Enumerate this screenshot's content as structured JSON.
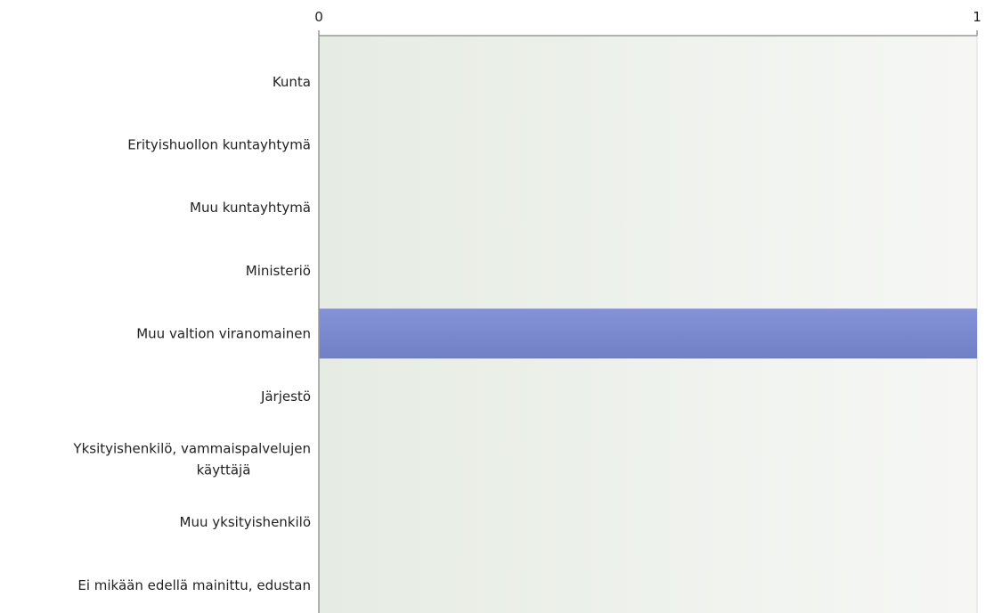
{
  "chart_data": {
    "type": "bar",
    "orientation": "horizontal",
    "categories": [
      "Kunta",
      "Erityishuollon kuntayhtymä",
      "Muu kuntayhtymä",
      "Ministeriö",
      "Muu valtion viranomainen",
      "Järjestö",
      "Yksityishenkilö, vammaispalvelujen käyttäjä",
      "Muu yksityishenkilö",
      "Ei mikään edellä mainittu, edustan"
    ],
    "category_lines": [
      [
        "Kunta"
      ],
      [
        "Erityishuollon kuntayhtymä"
      ],
      [
        "Muu kuntayhtymä"
      ],
      [
        "Ministeriö"
      ],
      [
        "Muu valtion viranomainen"
      ],
      [
        "Järjestö"
      ],
      [
        "Yksityishenkilö, vammaispalvelujen",
        "käyttäjä"
      ],
      [
        "Muu yksityishenkilö"
      ],
      [
        "Ei mikään edellä mainittu, edustan"
      ]
    ],
    "values": [
      0,
      0,
      0,
      0,
      1,
      0,
      0,
      0,
      0
    ],
    "xlim": [
      0,
      1
    ],
    "x_ticks": [
      0,
      1
    ],
    "x_tick_labels": [
      "0",
      "1"
    ],
    "axis_position": "top",
    "grid": true,
    "title": "",
    "xlabel": "",
    "ylabel": "",
    "colors": {
      "bar_top": "#8592d8",
      "bar_bottom": "#7080c4",
      "plot_bg_left": "#e6ece3",
      "plot_bg_right": "#f6f7f5",
      "axis": "#999999",
      "grid": "#d9ddd6"
    }
  }
}
